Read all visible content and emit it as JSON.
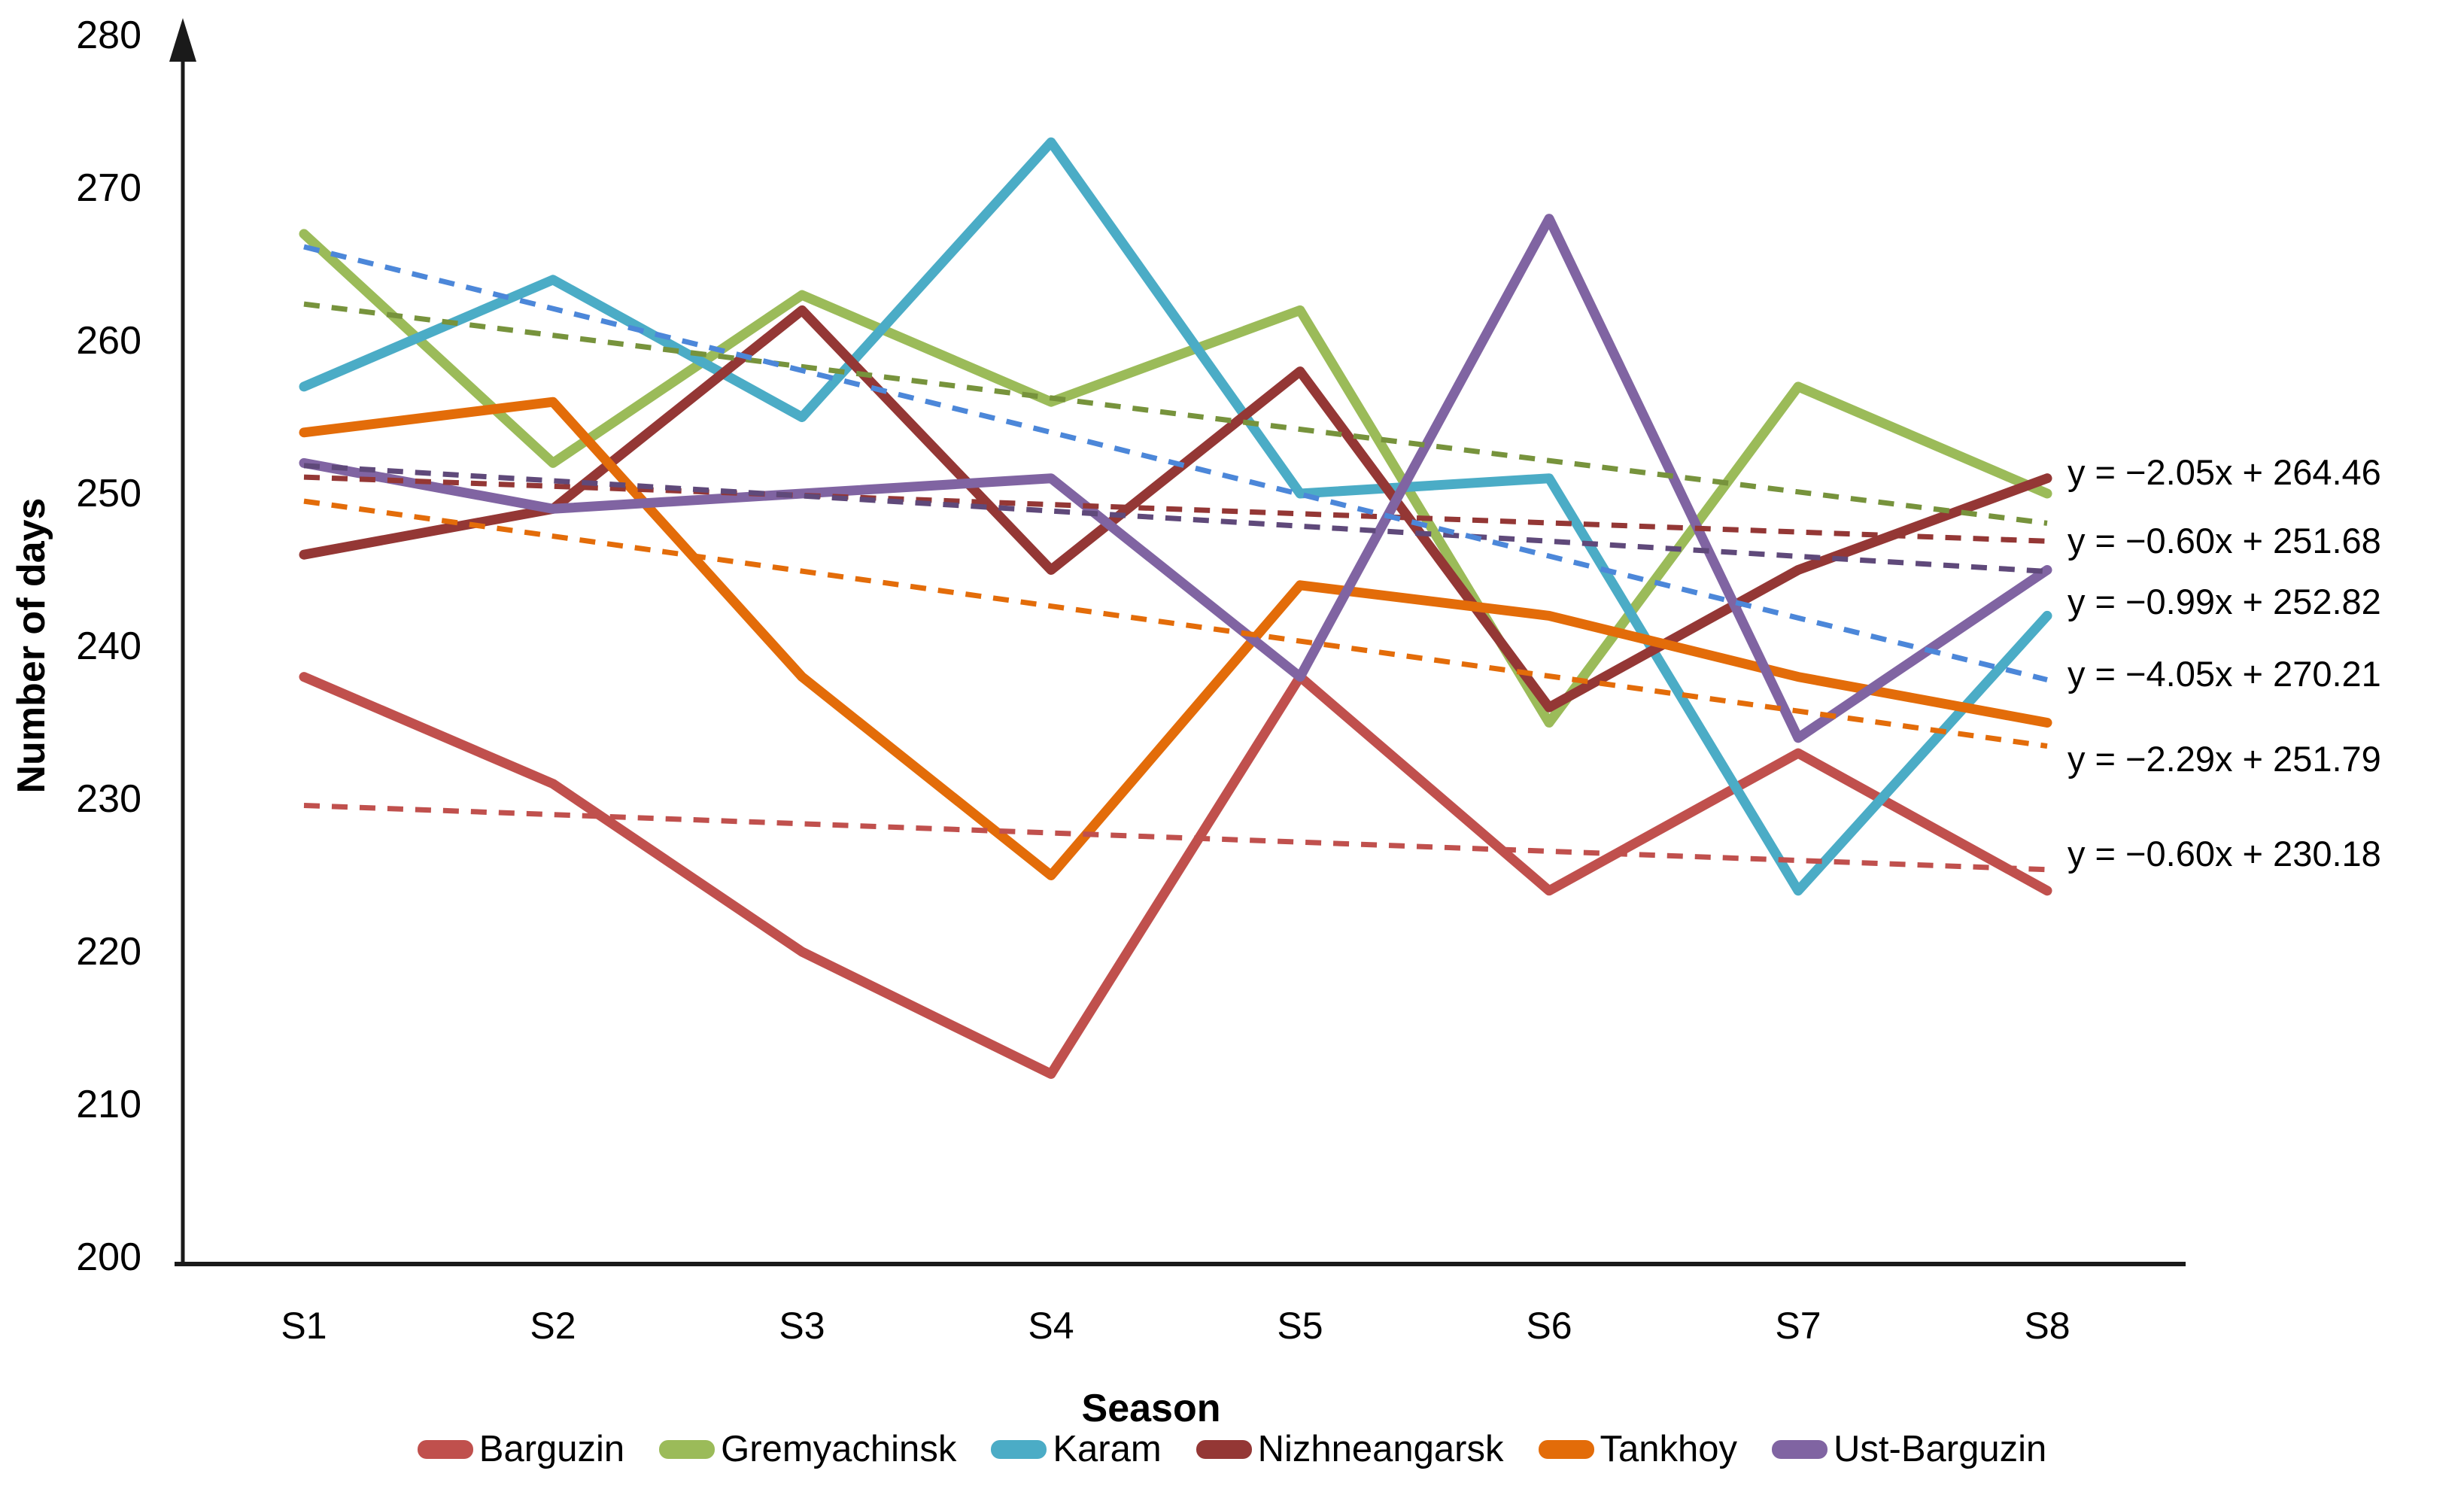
{
  "page": {
    "background": "#FFFFFF"
  },
  "chart_data": {
    "type": "line",
    "title": "",
    "xlabel": "Season",
    "ylabel": "Number of days",
    "categories": [
      "S1",
      "S2",
      "S3",
      "S4",
      "S5",
      "S6",
      "S7",
      "S8"
    ],
    "ylim": [
      200,
      280
    ],
    "ytick_step": 10,
    "ytick_labels": [
      "200",
      "210",
      "220",
      "230",
      "240",
      "250",
      "260",
      "270",
      "280"
    ],
    "grid": false,
    "legend_position": "bottom",
    "axis_color": "#1A1A1A",
    "text_color": "#000000",
    "series": [
      {
        "name": "Barguzin",
        "color": "#C0504D",
        "values": [
          238,
          231,
          220,
          212,
          238,
          224,
          233,
          224
        ]
      },
      {
        "name": "Gremyachinsk",
        "color": "#9BBB59",
        "values": [
          267,
          252,
          263,
          256,
          262,
          235,
          257,
          250
        ]
      },
      {
        "name": "Karam",
        "color": "#4BACC6",
        "values": [
          257,
          264,
          255,
          273,
          250,
          251,
          224,
          242
        ]
      },
      {
        "name": "Nizhneangarsk",
        "color": "#943735",
        "values": [
          246,
          249,
          262,
          245,
          258,
          236,
          245,
          251
        ]
      },
      {
        "name": "Tankhoy",
        "color": "#E36C09",
        "values": [
          254,
          256,
          238,
          225,
          244,
          242,
          238,
          235
        ]
      },
      {
        "name": "Ust-Barguzin",
        "color": "#8064A2",
        "values": [
          252,
          249,
          250,
          251,
          238,
          268,
          234,
          245
        ]
      }
    ],
    "trendlines": [
      {
        "series": "Gremyachinsk",
        "color": "#77933C",
        "slope": -2.05,
        "intercept": 264.46,
        "equation": "y = −2.05x + 264.46",
        "label_at_value": 251.4
      },
      {
        "series": "Nizhneangarsk",
        "color": "#943735",
        "slope": -0.6,
        "intercept": 251.68,
        "equation": "y = −0.60x + 251.68",
        "label_at_value": 246.9
      },
      {
        "series": "Ust-Barguzin",
        "color": "#5F497A",
        "slope": -0.99,
        "intercept": 252.82,
        "equation": "y = −0.99x + 252.82",
        "label_at_value": 242.9
      },
      {
        "series": "Karam",
        "color": "#4C87D9",
        "slope": -4.05,
        "intercept": 270.21,
        "equation": "y = −4.05x + 270.21",
        "label_at_value": 238.2
      },
      {
        "series": "Tankhoy",
        "color": "#E36C09",
        "slope": -2.29,
        "intercept": 251.79,
        "equation": "y = −2.29x + 251.79",
        "label_at_value": 232.6
      },
      {
        "series": "Barguzin",
        "color": "#C0504D",
        "slope": -0.6,
        "intercept": 230.18,
        "equation": "y = −0.60x + 230.18",
        "label_at_value": 226.4
      }
    ]
  }
}
